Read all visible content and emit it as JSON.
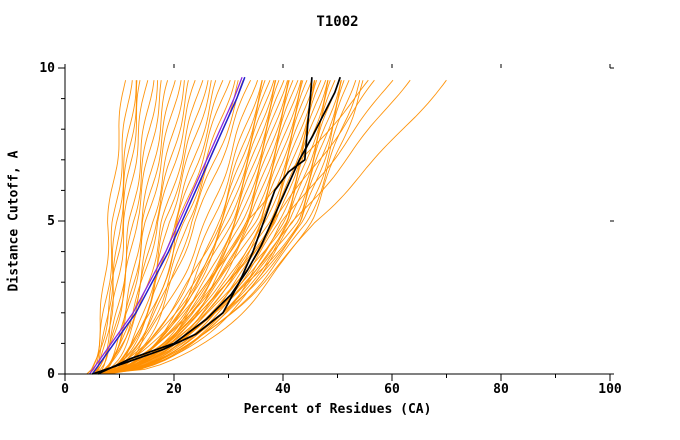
{
  "figure": {
    "title": "T1002",
    "x_axis_label": "Percent of Residues (CA)",
    "y_axis_label": "Distance Cutoff, A"
  },
  "colors": {
    "background": "#ffffff",
    "axis": "#000000",
    "ensemble": "#ff8f00",
    "highlight_blue": "#2222cc",
    "highlight_purple": "#8a2be2",
    "highlight_black": "#000000"
  },
  "chart_data": {
    "type": "line",
    "title": "T1002",
    "xlabel": "Percent of Residues (CA)",
    "ylabel": "Distance Cutoff, A",
    "xlim": [
      0,
      100
    ],
    "ylim": [
      0,
      10
    ],
    "x_major_ticks": [
      0,
      20,
      40,
      60,
      80,
      100
    ],
    "x_minor_ticks": [
      10,
      30,
      50,
      70,
      90
    ],
    "y_major_ticks": [
      0,
      5,
      10
    ],
    "y_minor_ticks": [
      1,
      2,
      3,
      4,
      6,
      7,
      8,
      9
    ],
    "grid": false,
    "legend": null,
    "ensemble": {
      "name": "model-curves",
      "description": "orange ensemble of model curves; each entry is [x at cutoff 0, x at cutoff 5, x at cutoff 9.6] in percent of residues",
      "anchor_y": [
        0,
        5,
        9.6
      ],
      "curves": [
        [
          4,
          8,
          11
        ],
        [
          4.5,
          9,
          12
        ],
        [
          5,
          9.5,
          13
        ],
        [
          5,
          10,
          13.5
        ],
        [
          4,
          10.5,
          14
        ],
        [
          5,
          11,
          15
        ],
        [
          5,
          12,
          16
        ],
        [
          6,
          12.5,
          17
        ],
        [
          5,
          13,
          18
        ],
        [
          6,
          14,
          19
        ],
        [
          5,
          14.5,
          20
        ],
        [
          6,
          15,
          21
        ],
        [
          6,
          16,
          22
        ],
        [
          5,
          16.5,
          23
        ],
        [
          6,
          17,
          24
        ],
        [
          6,
          18,
          25
        ],
        [
          7,
          18.5,
          26
        ],
        [
          6,
          19,
          27
        ],
        [
          7,
          20,
          28
        ],
        [
          6,
          20.5,
          29
        ],
        [
          7,
          21,
          30
        ],
        [
          6,
          22,
          31
        ],
        [
          7,
          22.5,
          32
        ],
        [
          7,
          23,
          33
        ],
        [
          6,
          24,
          34
        ],
        [
          5,
          26,
          35
        ],
        [
          5.5,
          27,
          36
        ],
        [
          6,
          28,
          36.5
        ],
        [
          5,
          28.5,
          37
        ],
        [
          6,
          29,
          37.5
        ],
        [
          5,
          29.5,
          38
        ],
        [
          6,
          30,
          38.5
        ],
        [
          5,
          30.5,
          39
        ],
        [
          6,
          31,
          39.5
        ],
        [
          5,
          31.5,
          40
        ],
        [
          6,
          32,
          40.5
        ],
        [
          5,
          32.5,
          41
        ],
        [
          6,
          33,
          41.5
        ],
        [
          5,
          33.5,
          42
        ],
        [
          6,
          34,
          42.5
        ],
        [
          5,
          34.5,
          43
        ],
        [
          6,
          35,
          43.5
        ],
        [
          5,
          35.5,
          44
        ],
        [
          6,
          36,
          44.5
        ],
        [
          5,
          36.5,
          45
        ],
        [
          6,
          37,
          45.5
        ],
        [
          5,
          37.5,
          46
        ],
        [
          6,
          38,
          46.5
        ],
        [
          5,
          38.5,
          47
        ],
        [
          6,
          39,
          47.5
        ],
        [
          5,
          39.5,
          48
        ],
        [
          6,
          40,
          48.5
        ],
        [
          5,
          40.5,
          49
        ],
        [
          6,
          41,
          49.5
        ],
        [
          5,
          41.5,
          50
        ],
        [
          6,
          42,
          50.5
        ],
        [
          5,
          42.5,
          51
        ],
        [
          6,
          43,
          51.5
        ],
        [
          5,
          43.5,
          52
        ],
        [
          6,
          44,
          53
        ],
        [
          5,
          44.5,
          54
        ],
        [
          6,
          45,
          55
        ],
        [
          6,
          38,
          57
        ],
        [
          7,
          40,
          60
        ],
        [
          6,
          42,
          63
        ],
        [
          8,
          46,
          70
        ],
        [
          7,
          33,
          56
        ]
      ]
    },
    "highlights": [
      {
        "name": "model-purple",
        "color": "#8a2be2",
        "width": 1.3,
        "points": [
          [
            4.5,
            0
          ],
          [
            6.5,
            0.5
          ],
          [
            8.5,
            1
          ],
          [
            12.5,
            2
          ],
          [
            15.5,
            3
          ],
          [
            18.5,
            4
          ],
          [
            21,
            5
          ],
          [
            23.5,
            6
          ],
          [
            26,
            7
          ],
          [
            28.5,
            8
          ],
          [
            31,
            9
          ],
          [
            32.5,
            9.7
          ]
        ]
      },
      {
        "name": "model-blue",
        "color": "#2222cc",
        "width": 1.5,
        "points": [
          [
            5,
            0
          ],
          [
            7,
            0.5
          ],
          [
            9,
            1
          ],
          [
            13,
            2
          ],
          [
            16,
            3
          ],
          [
            19,
            4
          ],
          [
            21.5,
            5
          ],
          [
            24,
            6
          ],
          [
            26.5,
            7
          ],
          [
            29,
            8
          ],
          [
            31.5,
            9
          ],
          [
            33,
            9.7
          ]
        ]
      },
      {
        "name": "reference-black-1",
        "color": "#000000",
        "width": 1.7,
        "points": [
          [
            5,
            0
          ],
          [
            10,
            0.3
          ],
          [
            18,
            0.8
          ],
          [
            24,
            1.3
          ],
          [
            29,
            2
          ],
          [
            32,
            3
          ],
          [
            34.5,
            4
          ],
          [
            36.5,
            5
          ],
          [
            38.5,
            6
          ],
          [
            41,
            6.6
          ],
          [
            44,
            7
          ],
          [
            44.3,
            7.6
          ],
          [
            44.6,
            8.3
          ],
          [
            45,
            9
          ],
          [
            45.3,
            9.7
          ]
        ]
      },
      {
        "name": "reference-black-2",
        "color": "#000000",
        "width": 1.7,
        "points": [
          [
            6,
            0
          ],
          [
            12,
            0.5
          ],
          [
            20,
            1
          ],
          [
            26,
            1.8
          ],
          [
            30.5,
            2.6
          ],
          [
            33.5,
            3.4
          ],
          [
            36,
            4.2
          ],
          [
            38,
            5
          ],
          [
            40.5,
            6
          ],
          [
            43,
            7
          ],
          [
            45.5,
            7.8
          ],
          [
            47.5,
            8.5
          ],
          [
            49.5,
            9.2
          ],
          [
            50.5,
            9.7
          ]
        ]
      }
    ]
  }
}
